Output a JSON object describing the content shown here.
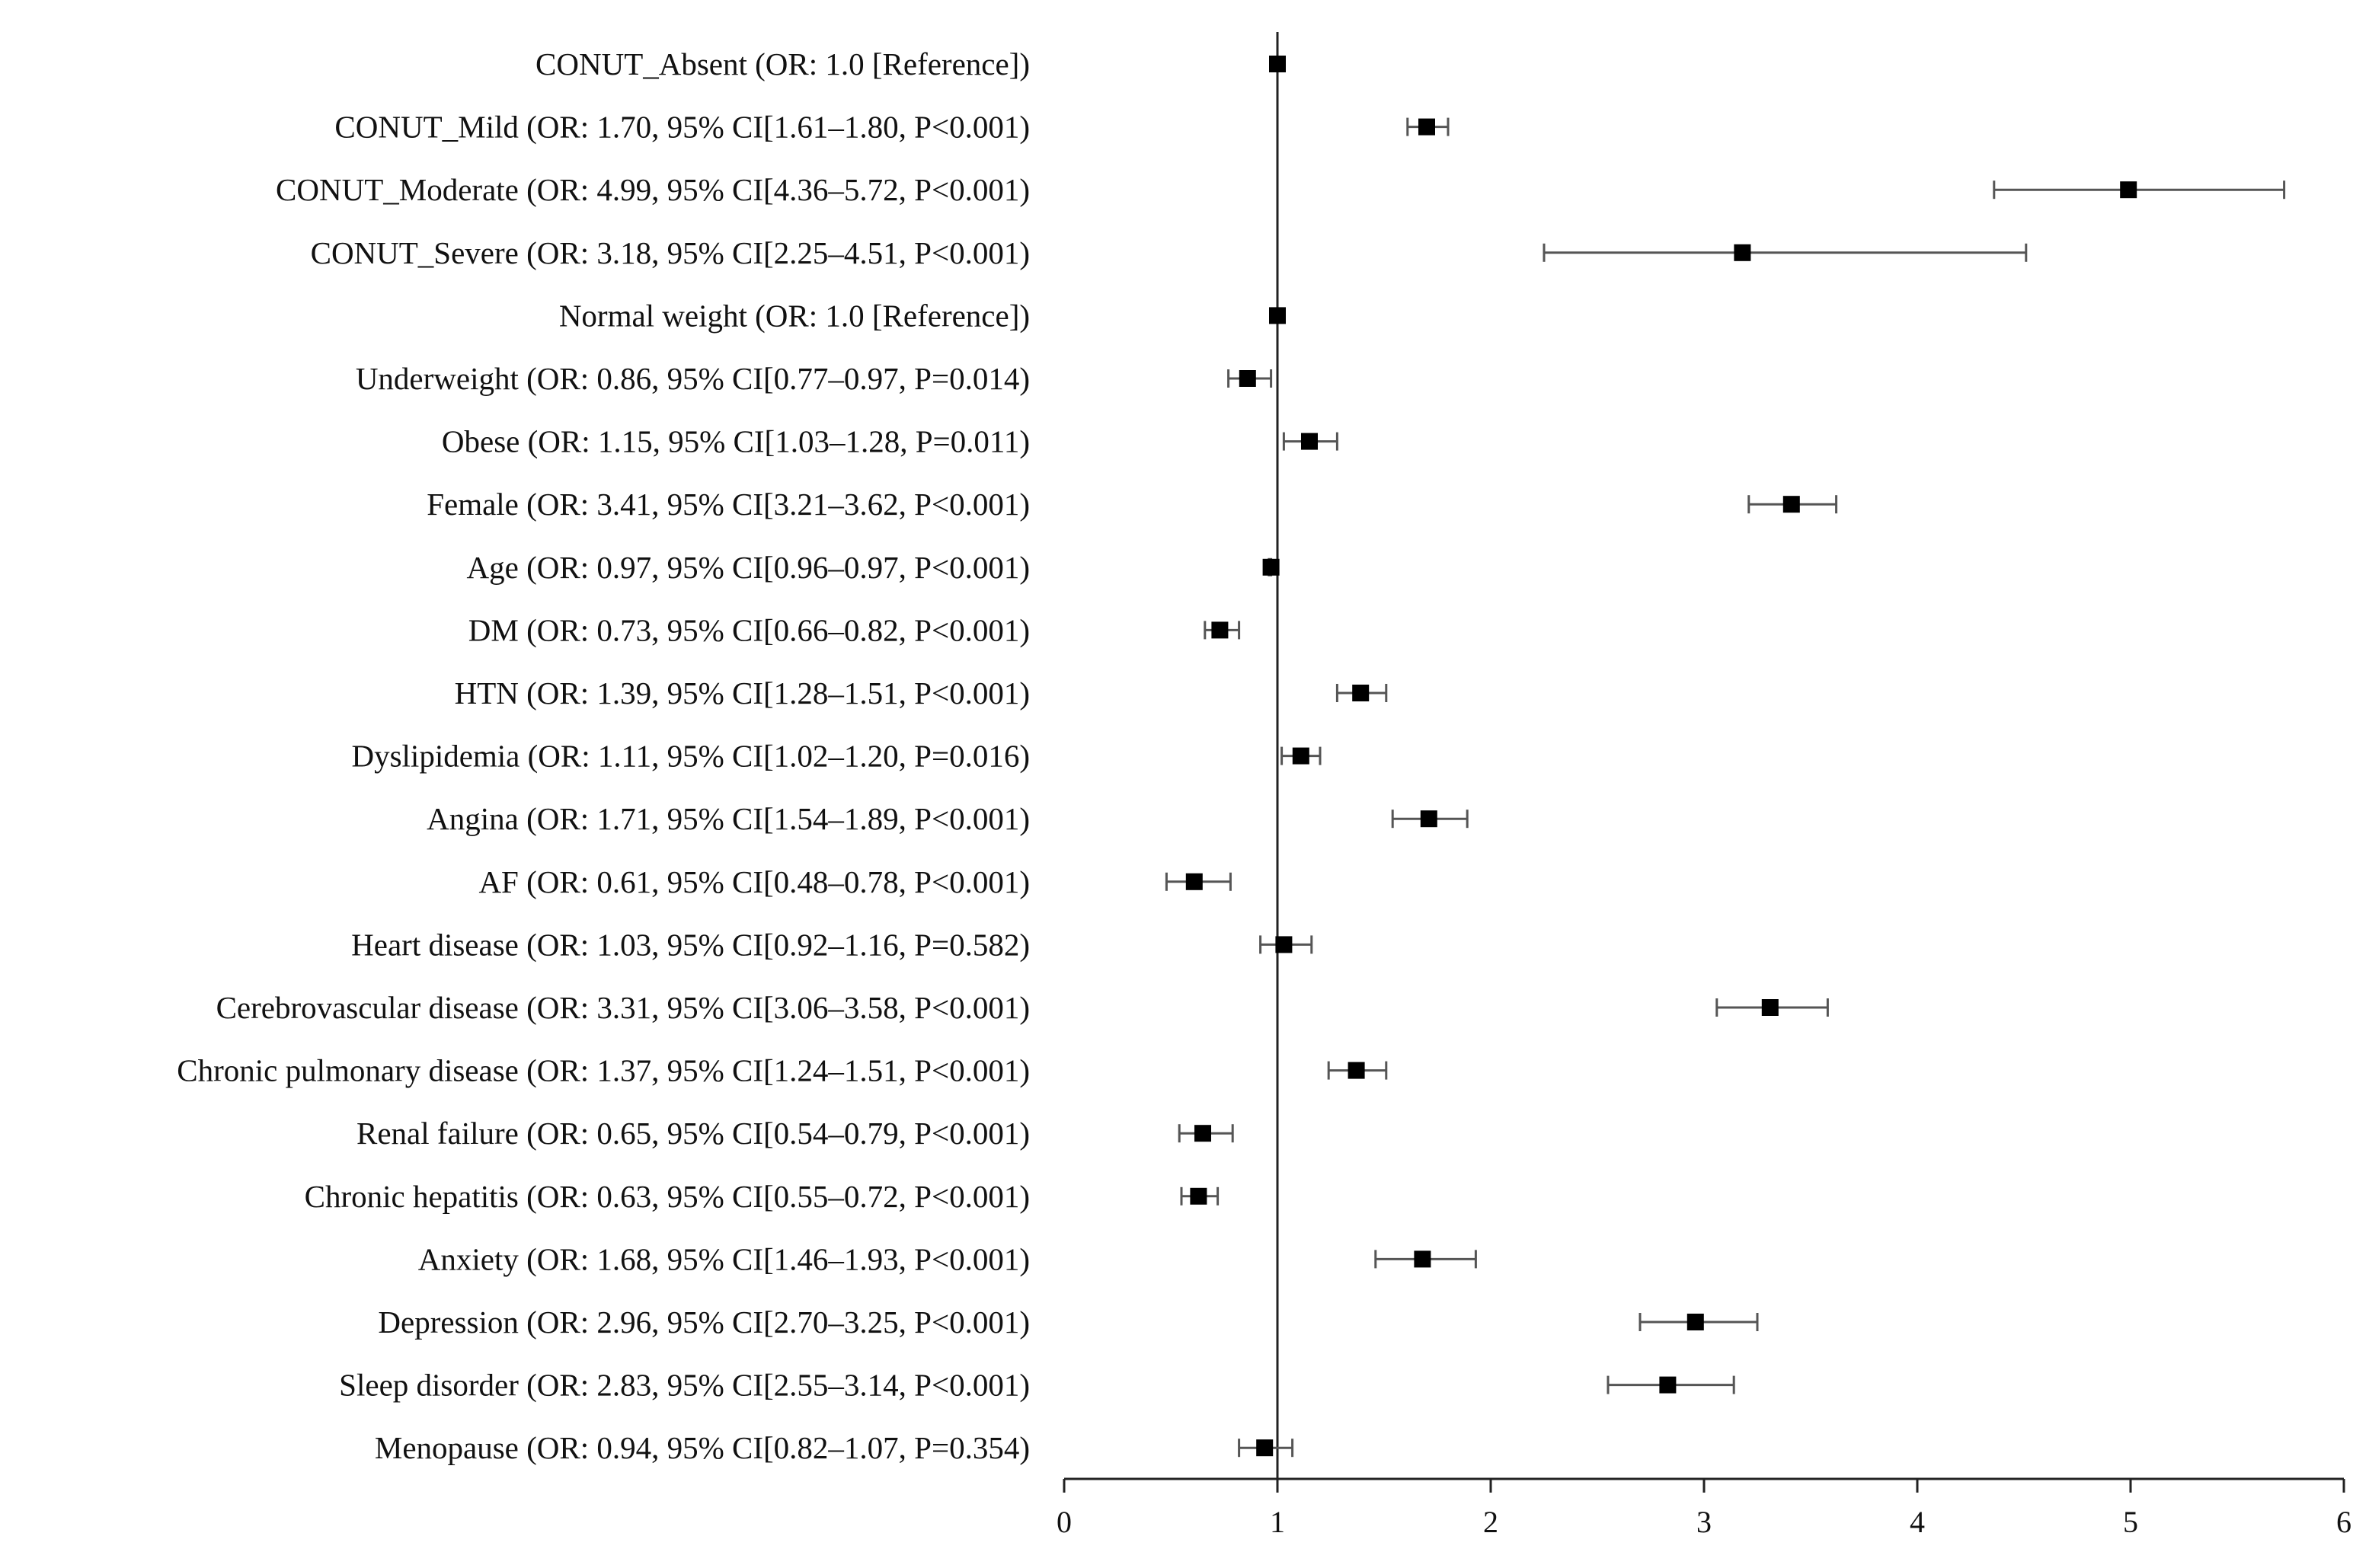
{
  "chart_data": {
    "type": "scatter",
    "subtype": "forest-plot",
    "title": "",
    "xlabel": "",
    "ylabel": "",
    "xlim": [
      0,
      6
    ],
    "xticks": [
      0,
      1,
      2,
      3,
      4,
      5,
      6
    ],
    "reference_line": 1,
    "grid": false,
    "marker_color": "#000000",
    "rows": [
      {
        "label": "CONUT_Absent (OR: 1.0 [Reference])",
        "or": 1.0,
        "lo": null,
        "hi": null
      },
      {
        "label": "CONUT_Mild (OR: 1.70, 95% CI[1.61–1.80, P<0.001)",
        "or": 1.7,
        "lo": 1.61,
        "hi": 1.8
      },
      {
        "label": "CONUT_Moderate (OR: 4.99, 95% CI[4.36–5.72, P<0.001)",
        "or": 4.99,
        "lo": 4.36,
        "hi": 5.72
      },
      {
        "label": "CONUT_Severe (OR: 3.18, 95% CI[2.25–4.51, P<0.001)",
        "or": 3.18,
        "lo": 2.25,
        "hi": 4.51
      },
      {
        "label": "Normal weight (OR: 1.0 [Reference])",
        "or": 1.0,
        "lo": null,
        "hi": null
      },
      {
        "label": "Underweight (OR: 0.86, 95% CI[0.77–0.97, P=0.014)",
        "or": 0.86,
        "lo": 0.77,
        "hi": 0.97
      },
      {
        "label": "Obese (OR: 1.15, 95% CI[1.03–1.28, P=0.011)",
        "or": 1.15,
        "lo": 1.03,
        "hi": 1.28
      },
      {
        "label": "Female (OR: 3.41, 95% CI[3.21–3.62, P<0.001)",
        "or": 3.41,
        "lo": 3.21,
        "hi": 3.62
      },
      {
        "label": "Age (OR: 0.97, 95% CI[0.96–0.97, P<0.001)",
        "or": 0.97,
        "lo": 0.96,
        "hi": 0.97
      },
      {
        "label": "DM (OR: 0.73, 95% CI[0.66–0.82, P<0.001)",
        "or": 0.73,
        "lo": 0.66,
        "hi": 0.82
      },
      {
        "label": "HTN (OR: 1.39, 95% CI[1.28–1.51, P<0.001)",
        "or": 1.39,
        "lo": 1.28,
        "hi": 1.51
      },
      {
        "label": "Dyslipidemia (OR: 1.11, 95% CI[1.02–1.20, P=0.016)",
        "or": 1.11,
        "lo": 1.02,
        "hi": 1.2
      },
      {
        "label": "Angina (OR: 1.71, 95% CI[1.54–1.89, P<0.001)",
        "or": 1.71,
        "lo": 1.54,
        "hi": 1.89
      },
      {
        "label": "AF (OR: 0.61, 95% CI[0.48–0.78, P<0.001)",
        "or": 0.61,
        "lo": 0.48,
        "hi": 0.78
      },
      {
        "label": "Heart disease (OR: 1.03, 95% CI[0.92–1.16, P=0.582)",
        "or": 1.03,
        "lo": 0.92,
        "hi": 1.16
      },
      {
        "label": "Cerebrovascular disease (OR: 3.31, 95% CI[3.06–3.58, P<0.001)",
        "or": 3.31,
        "lo": 3.06,
        "hi": 3.58
      },
      {
        "label": "Chronic pulmonary disease (OR: 1.37, 95% CI[1.24–1.51, P<0.001)",
        "or": 1.37,
        "lo": 1.24,
        "hi": 1.51
      },
      {
        "label": "Renal failure (OR: 0.65, 95% CI[0.54–0.79, P<0.001)",
        "or": 0.65,
        "lo": 0.54,
        "hi": 0.79
      },
      {
        "label": "Chronic hepatitis (OR: 0.63, 95% CI[0.55–0.72, P<0.001)",
        "or": 0.63,
        "lo": 0.55,
        "hi": 0.72
      },
      {
        "label": "Anxiety (OR: 1.68, 95% CI[1.46–1.93, P<0.001)",
        "or": 1.68,
        "lo": 1.46,
        "hi": 1.93
      },
      {
        "label": "Depression (OR: 2.96, 95% CI[2.70–3.25, P<0.001)",
        "or": 2.96,
        "lo": 2.7,
        "hi": 3.25
      },
      {
        "label": "Sleep disorder (OR: 2.83, 95% CI[2.55–3.14, P<0.001)",
        "or": 2.83,
        "lo": 2.55,
        "hi": 3.14
      },
      {
        "label": "Menopause (OR: 0.94, 95% CI[0.82–1.07, P=0.354)",
        "or": 0.94,
        "lo": 0.82,
        "hi": 1.07
      }
    ]
  }
}
